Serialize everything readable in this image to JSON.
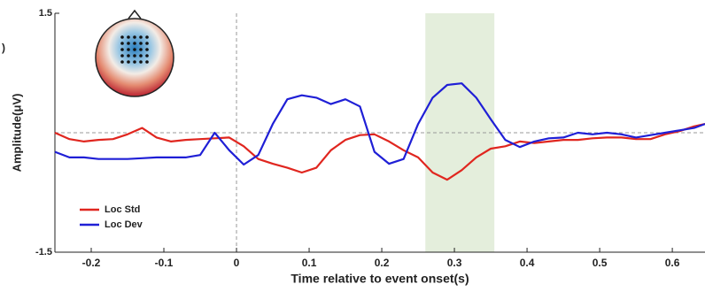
{
  "chart_data": {
    "type": "line",
    "fragment": ")",
    "x_label": "Time relative to event onset(s)",
    "y_label": "Amplitude(μV)",
    "xlim": [
      -0.25,
      0.645
    ],
    "ylim": [
      -1.5,
      1.5
    ],
    "xticks": [
      -0.2,
      -0.1,
      0,
      0.1,
      0.2,
      0.3,
      0.4,
      0.5,
      0.6
    ],
    "yticks": [
      -1.5,
      1.5
    ],
    "shaded_region": [
      0.26,
      0.355
    ],
    "legend": "lower left",
    "x": [
      -0.25,
      -0.23,
      -0.21,
      -0.19,
      -0.17,
      -0.15,
      -0.13,
      -0.11,
      -0.09,
      -0.07,
      -0.05,
      -0.03,
      -0.01,
      0.01,
      0.03,
      0.05,
      0.07,
      0.09,
      0.11,
      0.13,
      0.15,
      0.17,
      0.19,
      0.21,
      0.23,
      0.25,
      0.27,
      0.29,
      0.31,
      0.33,
      0.35,
      0.37,
      0.39,
      0.41,
      0.43,
      0.45,
      0.47,
      0.49,
      0.51,
      0.53,
      0.55,
      0.57,
      0.59,
      0.61,
      0.63,
      0.645
    ],
    "series": [
      {
        "name": "Loc Std",
        "color": "#e0261f",
        "values": [
          0,
          -0.08,
          -0.11,
          -0.09,
          -0.08,
          -0.02,
          0.06,
          -0.06,
          -0.11,
          -0.09,
          -0.08,
          -0.07,
          -0.06,
          -0.17,
          -0.33,
          -0.39,
          -0.44,
          -0.5,
          -0.44,
          -0.22,
          -0.09,
          -0.03,
          -0.02,
          -0.11,
          -0.22,
          -0.31,
          -0.5,
          -0.59,
          -0.47,
          -0.31,
          -0.2,
          -0.17,
          -0.11,
          -0.13,
          -0.11,
          -0.09,
          -0.09,
          -0.07,
          -0.06,
          -0.06,
          -0.08,
          -0.08,
          -0.02,
          0.02,
          0.08,
          0.11
        ]
      },
      {
        "name": "Loc Dev",
        "color": "#1f1fd6",
        "values": [
          -0.24,
          -0.31,
          -0.31,
          -0.33,
          -0.33,
          -0.33,
          -0.32,
          -0.31,
          -0.31,
          -0.31,
          -0.28,
          0,
          -0.22,
          -0.4,
          -0.28,
          0.11,
          0.42,
          0.47,
          0.44,
          0.36,
          0.42,
          0.33,
          -0.24,
          -0.39,
          -0.33,
          0.11,
          0.44,
          0.6,
          0.62,
          0.44,
          0.17,
          -0.09,
          -0.18,
          -0.11,
          -0.07,
          -0.06,
          0,
          -0.02,
          0,
          -0.02,
          -0.06,
          -0.03,
          0,
          0.03,
          0.06,
          0.11
        ]
      }
    ]
  }
}
